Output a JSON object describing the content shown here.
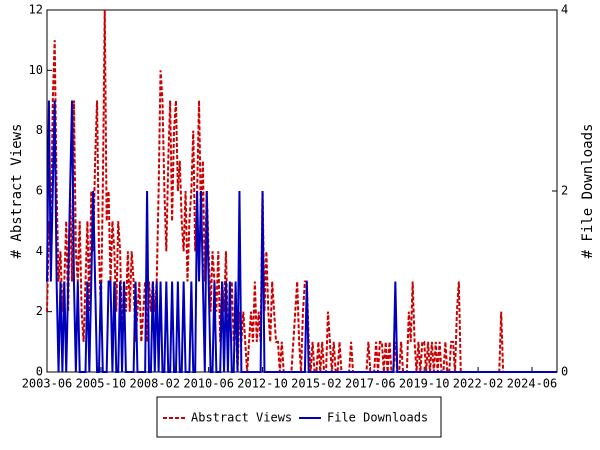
{
  "chart_data": {
    "type": "line",
    "x": [
      "2003-06",
      "2003-07",
      "2003-08",
      "2003-09",
      "2003-10",
      "2003-11",
      "2003-12",
      "2004-01",
      "2004-02",
      "2004-03",
      "2004-04",
      "2004-05",
      "2004-06",
      "2004-07",
      "2004-08",
      "2004-09",
      "2004-10",
      "2004-11",
      "2004-12",
      "2005-01",
      "2005-02",
      "2005-03",
      "2005-04",
      "2005-05",
      "2005-06",
      "2005-07",
      "2005-08",
      "2005-09",
      "2005-10",
      "2005-11",
      "2005-12",
      "2006-01",
      "2006-02",
      "2006-03",
      "2006-04",
      "2006-05",
      "2006-06",
      "2006-07",
      "2006-08",
      "2006-09",
      "2006-10",
      "2006-11",
      "2006-12",
      "2007-01",
      "2007-02",
      "2007-03",
      "2007-04",
      "2007-05",
      "2007-06",
      "2007-07",
      "2007-08",
      "2007-09",
      "2007-10",
      "2007-11",
      "2007-12",
      "2008-01",
      "2008-02",
      "2008-03",
      "2008-04",
      "2008-05",
      "2008-06",
      "2008-07",
      "2008-08",
      "2008-09",
      "2008-10",
      "2008-11",
      "2008-12",
      "2009-01",
      "2009-02",
      "2009-03",
      "2009-04",
      "2009-05",
      "2009-06",
      "2009-07",
      "2009-08",
      "2009-09",
      "2009-10",
      "2009-11",
      "2009-12",
      "2010-01",
      "2010-02",
      "2010-03",
      "2010-04",
      "2010-05",
      "2010-06",
      "2010-07",
      "2010-08",
      "2010-09",
      "2010-10",
      "2010-11",
      "2010-12",
      "2011-01",
      "2011-02",
      "2011-03",
      "2011-04",
      "2011-05",
      "2011-06",
      "2011-07",
      "2011-08",
      "2011-09",
      "2011-10",
      "2011-11",
      "2011-12",
      "2012-01",
      "2012-02",
      "2012-03",
      "2012-04",
      "2012-05",
      "2012-06",
      "2012-07",
      "2012-08",
      "2012-09",
      "2012-10",
      "2012-11",
      "2012-12",
      "2013-01",
      "2013-02",
      "2013-03",
      "2013-04",
      "2013-05",
      "2013-06",
      "2013-07",
      "2013-08",
      "2013-09",
      "2013-10",
      "2013-11",
      "2013-12",
      "2014-01",
      "2014-02",
      "2014-03",
      "2014-04",
      "2014-05",
      "2014-06",
      "2014-07",
      "2014-08",
      "2014-09",
      "2014-10",
      "2014-11",
      "2014-12",
      "2015-01",
      "2015-02",
      "2015-03",
      "2015-04",
      "2015-05",
      "2015-06",
      "2015-07",
      "2015-08",
      "2015-09",
      "2015-10",
      "2015-11",
      "2015-12",
      "2016-01",
      "2016-02",
      "2016-03",
      "2016-04",
      "2016-05",
      "2016-06",
      "2016-07",
      "2016-08",
      "2016-09",
      "2016-10",
      "2016-11",
      "2016-12",
      "2017-01",
      "2017-02",
      "2017-03",
      "2017-04",
      "2017-05",
      "2017-06",
      "2017-07",
      "2017-08",
      "2017-09",
      "2017-10",
      "2017-11",
      "2017-12",
      "2018-01",
      "2018-02",
      "2018-03",
      "2018-04",
      "2018-05",
      "2018-06",
      "2018-07",
      "2018-08",
      "2018-09",
      "2018-10",
      "2018-11",
      "2018-12",
      "2019-01",
      "2019-02",
      "2019-03",
      "2019-04",
      "2019-05",
      "2019-06",
      "2019-07",
      "2019-08",
      "2019-09",
      "2019-10",
      "2019-11",
      "2019-12",
      "2020-01",
      "2020-02",
      "2020-03",
      "2020-04",
      "2020-05",
      "2020-06",
      "2020-07",
      "2020-08",
      "2020-09",
      "2020-10",
      "2020-11",
      "2020-12",
      "2021-01",
      "2021-02",
      "2021-03",
      "2021-04",
      "2021-05",
      "2021-06",
      "2021-07",
      "2021-08",
      "2021-09",
      "2021-10",
      "2021-11",
      "2021-12",
      "2022-01",
      "2022-02",
      "2022-03",
      "2022-04",
      "2022-05",
      "2022-06",
      "2022-07",
      "2022-08",
      "2022-09",
      "2022-10",
      "2022-11",
      "2022-12",
      "2023-01",
      "2023-02",
      "2023-03",
      "2023-04",
      "2023-05",
      "2023-06",
      "2023-07",
      "2023-08",
      "2023-09",
      "2023-10",
      "2023-11",
      "2023-12",
      "2024-01",
      "2024-02",
      "2024-03",
      "2024-04",
      "2024-05",
      "2024-06",
      "2024-07",
      "2024-08",
      "2024-09",
      "2024-10",
      "2024-11",
      "2024-12",
      "2025-01",
      "2025-02",
      "2025-03",
      "2025-04",
      "2025-05",
      "2025-06",
      "2025-07"
    ],
    "series": [
      {
        "name": "Abstract Views",
        "color": "#cc0000",
        "dash": true,
        "values": [
          2,
          5,
          4,
          9,
          11,
          6,
          3,
          4,
          2,
          3,
          5,
          2,
          6,
          3,
          9,
          4,
          3,
          5,
          2,
          1,
          3,
          5,
          2,
          6,
          4,
          7,
          9,
          4,
          2,
          6,
          12,
          5,
          6,
          3,
          5,
          4,
          2,
          5,
          4,
          1,
          3,
          2,
          4,
          2,
          4,
          3,
          1,
          2,
          3,
          1,
          2,
          3,
          1,
          3,
          2,
          3,
          2,
          3,
          6,
          10,
          9,
          6,
          4,
          7,
          9,
          5,
          8,
          9,
          6,
          7,
          5,
          4,
          6,
          3,
          5,
          6,
          8,
          4,
          6,
          9,
          5,
          7,
          3,
          6,
          4,
          2,
          4,
          3,
          2,
          4,
          1,
          3,
          2,
          4,
          1,
          2,
          3,
          1,
          2,
          0,
          2,
          1,
          2,
          1,
          0,
          1,
          2,
          1,
          3,
          1,
          2,
          1,
          6,
          2,
          4,
          2,
          1,
          3,
          2,
          1,
          1,
          0,
          1,
          0,
          0,
          0,
          0,
          0,
          1,
          2,
          3,
          1,
          0,
          2,
          3,
          3,
          1,
          0,
          1,
          0,
          0,
          1,
          0,
          1,
          0,
          0,
          2,
          1,
          0,
          1,
          0,
          0,
          1,
          0,
          0,
          0,
          0,
          0,
          1,
          0,
          0,
          0,
          0,
          0,
          0,
          0,
          0,
          1,
          0,
          0,
          0,
          1,
          0,
          1,
          1,
          0,
          1,
          0,
          1,
          0,
          0,
          1,
          0,
          0,
          1,
          0,
          0,
          0,
          2,
          1,
          3,
          1,
          0,
          1,
          0,
          1,
          1,
          0,
          1,
          0,
          1,
          0,
          1,
          0,
          1,
          0,
          0,
          1,
          0,
          0,
          1,
          1,
          0,
          2,
          3,
          0,
          0,
          0,
          0,
          0,
          0,
          0,
          0,
          0,
          0,
          0,
          0,
          0,
          0,
          0,
          0,
          0,
          0,
          0,
          0,
          0,
          2,
          0,
          0,
          0,
          0,
          0,
          0,
          0,
          0,
          0,
          0,
          0,
          0,
          0,
          0,
          0,
          0,
          0,
          0,
          0,
          0,
          0,
          0,
          0,
          0,
          0,
          0,
          0,
          0,
          0
        ]
      },
      {
        "name": "File Downloads",
        "color": "#0000bb",
        "dash": false,
        "axis": "y2",
        "values": [
          1,
          3,
          1,
          2,
          3,
          1,
          0,
          1,
          0,
          1,
          0,
          1,
          2,
          3,
          1,
          0,
          1,
          0,
          0,
          0,
          0,
          1,
          0,
          1,
          2,
          1,
          0,
          0,
          1,
          0,
          0,
          0,
          1,
          1,
          0,
          1,
          0,
          0,
          1,
          0,
          1,
          0,
          0,
          0,
          0,
          0,
          1,
          0,
          0,
          0,
          0,
          0,
          2,
          0,
          0,
          1,
          0,
          1,
          0,
          1,
          0,
          0,
          1,
          0,
          0,
          1,
          0,
          0,
          1,
          0,
          0,
          1,
          0,
          0,
          0,
          1,
          0,
          0,
          2,
          1,
          2,
          1,
          0,
          2,
          1,
          0,
          0,
          1,
          0,
          0,
          0,
          1,
          0,
          1,
          0,
          1,
          0,
          0,
          1,
          0,
          2,
          0,
          0,
          0,
          0,
          0,
          0,
          0,
          0,
          0,
          0,
          0,
          2,
          0,
          0,
          0,
          0,
          0,
          0,
          0,
          0,
          0,
          0,
          0,
          0,
          0,
          0,
          0,
          0,
          0,
          0,
          0,
          0,
          0,
          0,
          1,
          0,
          0,
          0,
          0,
          0,
          0,
          0,
          0,
          0,
          0,
          0,
          0,
          0,
          0,
          0,
          0,
          0,
          0,
          0,
          0,
          0,
          0,
          0,
          0,
          0,
          0,
          0,
          0,
          0,
          0,
          0,
          0,
          0,
          0,
          0,
          0,
          0,
          0,
          0,
          0,
          0,
          0,
          0,
          0,
          0,
          1,
          0,
          0,
          0,
          0,
          0,
          0,
          0,
          0,
          0,
          0,
          0,
          0,
          0,
          0,
          0,
          0,
          0,
          0,
          0,
          0,
          0,
          0,
          0,
          0,
          0,
          0,
          0,
          0,
          0,
          0,
          0,
          0,
          0,
          0,
          0,
          0,
          0,
          0,
          0,
          0,
          0,
          0,
          0,
          0,
          0,
          0,
          0,
          0,
          0,
          0,
          0,
          0,
          0,
          0,
          0,
          0,
          0,
          0,
          0,
          0,
          0,
          0,
          0,
          0,
          0,
          0,
          0,
          0,
          0,
          0,
          0,
          0,
          0,
          0,
          0,
          0,
          0,
          0,
          0,
          0,
          0,
          0,
          0,
          0
        ]
      }
    ],
    "xlim": [
      "2003-06",
      "2025-07"
    ],
    "xticks": [
      "2003-06",
      "2005-10",
      "2008-02",
      "2010-06",
      "2012-10",
      "2015-02",
      "2017-06",
      "2019-10",
      "2022-02",
      "2024-06"
    ],
    "ylim": [
      0,
      12
    ],
    "yticks": [
      0,
      2,
      4,
      6,
      8,
      10,
      12
    ],
    "y2lim": [
      0,
      4
    ],
    "y2ticks": [
      0,
      2,
      4
    ],
    "y_label": "# Abstract Views",
    "y2_label": "# File Downloads"
  }
}
